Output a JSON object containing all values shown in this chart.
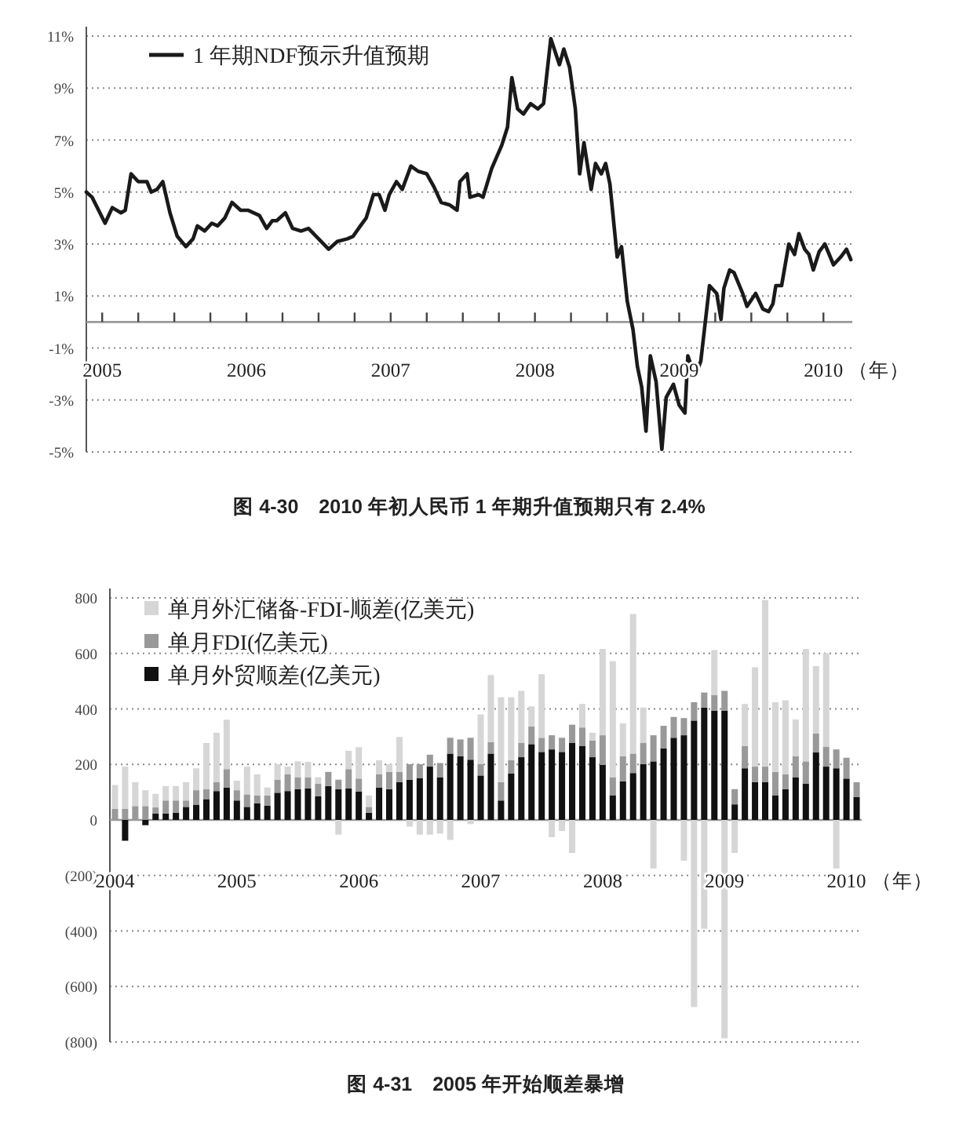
{
  "chart_data": [
    {
      "type": "line",
      "title": "图 4-30　2010 年初人民币 1 年期升值预期只有 2.4%",
      "xlabel": "（年）",
      "legend": "top left",
      "grid": "y",
      "line_style": "solid",
      "xlim": [
        2004.89,
        2010.2
      ],
      "xticks": [
        2005,
        {
          "value": 2005.25,
          "label": null
        },
        {
          "value": 2005.5,
          "label": null
        },
        {
          "value": 2005.75,
          "label": null
        },
        2006,
        {
          "value": 2006.25,
          "label": null
        },
        {
          "value": 2006.5,
          "label": null
        },
        {
          "value": 2006.75,
          "label": null
        },
        2007,
        {
          "value": 2007.25,
          "label": null
        },
        {
          "value": 2007.5,
          "label": null
        },
        {
          "value": 2007.75,
          "label": null
        },
        2008,
        {
          "value": 2008.25,
          "label": null
        },
        {
          "value": 2008.5,
          "label": null
        },
        {
          "value": 2008.75,
          "label": null
        },
        2009,
        {
          "value": 2009.25,
          "label": null
        },
        {
          "value": 2009.5,
          "label": null
        },
        {
          "value": 2009.75,
          "label": null
        },
        2010
      ],
      "ylim": [
        -5,
        11
      ],
      "yticks": [
        {
          "value": -5,
          "label": "-5%"
        },
        {
          "value": -3,
          "label": "-3%"
        },
        {
          "value": -1,
          "label": "-1%"
        },
        {
          "value": 1,
          "label": "1%"
        },
        {
          "value": 3,
          "label": "3%"
        },
        {
          "value": 5,
          "label": "5%"
        },
        {
          "value": 7,
          "label": "7%"
        },
        {
          "value": 9,
          "label": "9%"
        },
        {
          "value": 11,
          "label": "11%"
        }
      ],
      "x": [
        2004.89,
        2004.93,
        2005.02,
        2005.07,
        2005.13,
        2005.16,
        2005.2,
        2005.25,
        2005.31,
        2005.34,
        2005.38,
        2005.42,
        2005.47,
        2005.52,
        2005.58,
        2005.63,
        2005.66,
        2005.71,
        2005.76,
        2005.8,
        2005.85,
        2005.9,
        2005.96,
        2006.01,
        2006.09,
        2006.14,
        2006.18,
        2006.21,
        2006.27,
        2006.32,
        2006.38,
        2006.43,
        2006.5,
        2006.57,
        2006.63,
        2006.7,
        2006.74,
        2006.79,
        2006.83,
        2006.88,
        2006.92,
        2006.96,
        2006.99,
        2007.04,
        2007.08,
        2007.14,
        2007.19,
        2007.25,
        2007.3,
        2007.35,
        2007.41,
        2007.46,
        2007.48,
        2007.53,
        2007.55,
        2007.61,
        2007.64,
        2007.7,
        2007.77,
        2007.81,
        2007.84,
        2007.88,
        2007.92,
        2007.97,
        2008.02,
        2008.06,
        2008.11,
        2008.17,
        2008.2,
        2008.24,
        2008.28,
        2008.31,
        2008.34,
        2008.39,
        2008.42,
        2008.46,
        2008.49,
        2008.52,
        2008.57,
        2008.6,
        2008.64,
        2008.68,
        2008.71,
        2008.74,
        2008.77,
        2008.8,
        2008.84,
        2008.88,
        2008.91,
        2008.96,
        2009.0,
        2009.04,
        2009.06,
        2009.11,
        2009.15,
        2009.21,
        2009.26,
        2009.29,
        2009.31,
        2009.35,
        2009.38,
        2009.44,
        2009.47,
        2009.53,
        2009.58,
        2009.62,
        2009.65,
        2009.67,
        2009.71,
        2009.76,
        2009.8,
        2009.83,
        2009.87,
        2009.9,
        2009.93,
        2009.97,
        2010.01,
        2010.07,
        2010.12,
        2010.16,
        2010.19
      ],
      "series": [
        {
          "name": "1 年期NDF预示升值预期",
          "color": "#1a1a1a",
          "values": [
            5.0,
            4.8,
            3.8,
            4.4,
            4.2,
            4.3,
            5.7,
            5.4,
            5.4,
            5.0,
            5.1,
            5.4,
            4.2,
            3.3,
            2.9,
            3.2,
            3.7,
            3.5,
            3.8,
            3.7,
            4.0,
            4.6,
            4.3,
            4.3,
            4.1,
            3.6,
            3.9,
            3.9,
            4.2,
            3.6,
            3.5,
            3.6,
            3.2,
            2.8,
            3.1,
            3.2,
            3.3,
            3.7,
            4.0,
            4.9,
            4.9,
            4.3,
            4.9,
            5.4,
            5.1,
            6.0,
            5.8,
            5.7,
            5.2,
            4.6,
            4.5,
            4.3,
            5.4,
            5.7,
            4.8,
            4.9,
            4.8,
            5.9,
            6.8,
            7.5,
            9.4,
            8.2,
            8.0,
            8.4,
            8.2,
            8.4,
            10.9,
            9.9,
            10.5,
            9.8,
            8.2,
            5.7,
            6.9,
            5.1,
            6.1,
            5.7,
            6.1,
            5.3,
            2.5,
            2.9,
            0.8,
            -0.3,
            -1.7,
            -2.5,
            -4.2,
            -1.3,
            -2.3,
            -4.9,
            -2.9,
            -2.4,
            -3.2,
            -3.5,
            -1.3,
            -2.1,
            -1.5,
            1.4,
            1.1,
            0.1,
            1.3,
            2.0,
            1.9,
            1.1,
            0.6,
            1.1,
            0.5,
            0.4,
            0.7,
            1.4,
            1.4,
            3.0,
            2.6,
            3.4,
            2.8,
            2.6,
            2.0,
            2.7,
            3.0,
            2.2,
            2.5,
            2.8,
            2.4
          ]
        }
      ]
    },
    {
      "type": "bar",
      "stacked": true,
      "title": "图 4-31　2005 年开始顺差暴增",
      "xlabel": "（年）",
      "legend": "top left",
      "grid": "y",
      "categories": [
        "2004",
        null,
        null,
        null,
        null,
        null,
        null,
        null,
        null,
        null,
        null,
        null,
        "2005",
        null,
        null,
        null,
        null,
        null,
        null,
        null,
        null,
        null,
        null,
        null,
        "2006",
        null,
        null,
        null,
        null,
        null,
        null,
        null,
        null,
        null,
        null,
        null,
        "2007",
        null,
        null,
        null,
        null,
        null,
        null,
        null,
        null,
        null,
        null,
        null,
        "2008",
        null,
        null,
        null,
        null,
        null,
        null,
        null,
        null,
        null,
        null,
        null,
        "2009",
        null,
        null,
        null,
        null,
        null,
        null,
        null,
        null,
        null,
        null,
        null,
        "2010",
        null
      ],
      "ylim": [
        -800,
        800
      ],
      "yticks": [
        {
          "value": -800,
          "label": "(800)"
        },
        {
          "value": -600,
          "label": "(600)"
        },
        {
          "value": -400,
          "label": "(400)"
        },
        {
          "value": -200,
          "label": "(200)"
        },
        0,
        200,
        400,
        600,
        800
      ],
      "series": [
        {
          "name": "单月外贸顺差(亿美元)",
          "color": "#111111",
          "values": [
            0,
            -75,
            0,
            -19,
            23,
            23,
            26,
            47,
            55,
            75,
            104,
            117,
            70,
            47,
            60,
            51,
            98,
            104,
            111,
            113,
            85,
            122,
            111,
            113,
            102,
            26,
            117,
            111,
            136,
            145,
            151,
            192,
            154,
            239,
            230,
            217,
            160,
            239,
            70,
            168,
            226,
            273,
            245,
            254,
            245,
            277,
            267,
            226,
            198,
            89,
            139,
            169,
            201,
            211,
            258,
            296,
            305,
            358,
            405,
            394,
            394,
            56,
            186,
            136,
            136,
            89,
            111,
            154,
            130,
            243,
            192,
            186,
            149,
            83
          ]
        },
        {
          "name": "单月FDI(亿美元)",
          "color": "#999999",
          "values": [
            40,
            40,
            50,
            50,
            22,
            47,
            44,
            23,
            52,
            36,
            32,
            66,
            37,
            45,
            28,
            37,
            47,
            60,
            43,
            41,
            45,
            51,
            34,
            70,
            47,
            21,
            47,
            62,
            37,
            56,
            50,
            43,
            51,
            57,
            60,
            79,
            41,
            42,
            66,
            47,
            51,
            64,
            51,
            51,
            51,
            66,
            66,
            60,
            107,
            65,
            91,
            70,
            76,
            94,
            81,
            75,
            62,
            66,
            54,
            56,
            71,
            55,
            81,
            56,
            56,
            84,
            53,
            76,
            81,
            68,
            72,
            68,
            75,
            53
          ]
        },
        {
          "name": "单月外汇储备-FDI-顺差(亿美元)",
          "color": "#d6d6d6",
          "values": [
            86,
            152,
            86,
            57,
            49,
            52,
            52,
            66,
            79,
            166,
            178,
            178,
            34,
            100,
            76,
            29,
            56,
            28,
            57,
            55,
            24,
            0,
            -53,
            66,
            113,
            41,
            51,
            28,
            126,
            -24,
            -53,
            -53,
            -49,
            -72,
            0,
            -15,
            179,
            241,
            306,
            227,
            188,
            72,
            229,
            -62,
            -40,
            -119,
            85,
            28,
            311,
            418,
            118,
            503,
            128,
            -175,
            0,
            0,
            -147,
            -674,
            -392,
            162,
            -787,
            -119,
            151,
            358,
            600,
            251,
            267,
            132,
            405,
            243,
            337,
            -175,
            0,
            0
          ]
        }
      ]
    }
  ]
}
